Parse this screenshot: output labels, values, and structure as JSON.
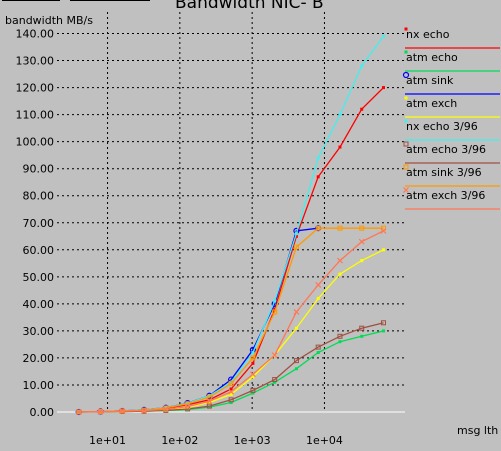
{
  "chart_data": {
    "type": "line",
    "title": "Bandwidth NIC- B",
    "ylabel": "bandwidth MB/s",
    "xlabel": "msg lth",
    "xscale": "log",
    "xlim": [
      2,
      130000
    ],
    "ylim": [
      0,
      145
    ],
    "grid": true,
    "legend_position": "right",
    "x_ticks": [
      10,
      100,
      1000,
      10000
    ],
    "x_tick_labels": [
      "1e+01",
      "1e+02",
      "1e+03",
      "1e+04"
    ],
    "y_ticks": [
      0,
      10,
      20,
      30,
      40,
      50,
      60,
      70,
      80,
      90,
      100,
      110,
      120,
      130,
      140
    ],
    "y_tick_labels": [
      "0.00",
      "10.00",
      "20.00",
      "30.00",
      "40.00",
      "50.00",
      "60.00",
      "70.00",
      "80.00",
      "90.00",
      "100.00",
      "110.00",
      "120.00",
      "130.00",
      "140.00"
    ],
    "series": [
      {
        "name": "nx echo",
        "color": "#ff0000",
        "marker": "dot",
        "x": [
          4,
          8,
          16,
          32,
          64,
          128,
          256,
          512,
          1024,
          2048,
          4096,
          8192,
          16384,
          32768,
          65536
        ],
        "y": [
          0,
          0.2,
          0.4,
          0.7,
          1.4,
          2.7,
          4.5,
          8.5,
          18,
          38,
          65,
          87,
          98,
          112,
          120
        ]
      },
      {
        "name": "atm echo",
        "color": "#00dd55",
        "marker": "dot",
        "x": [
          4,
          8,
          16,
          32,
          64,
          128,
          256,
          512,
          1024,
          2048,
          4096,
          8192,
          16384,
          32768,
          65536
        ],
        "y": [
          0,
          0.1,
          0.2,
          0.3,
          0.5,
          0.9,
          1.8,
          3.5,
          7,
          11,
          16,
          22,
          26,
          28,
          30
        ]
      },
      {
        "name": "atm sink",
        "color": "#0000ff",
        "marker": "circle",
        "x": [
          4,
          8,
          16,
          32,
          64,
          128,
          256,
          512,
          1024,
          2048,
          4096,
          8192
        ],
        "y": [
          0,
          0.2,
          0.4,
          0.8,
          1.6,
          3.3,
          6,
          12,
          23,
          40,
          67,
          68
        ]
      },
      {
        "name": "atm exch",
        "color": "#ffff00",
        "marker": "dot",
        "x": [
          4,
          8,
          16,
          32,
          64,
          128,
          256,
          512,
          1024,
          2048,
          4096,
          8192,
          16384,
          32768,
          65536
        ],
        "y": [
          0,
          0.1,
          0.2,
          0.4,
          0.8,
          1.7,
          3.5,
          6.5,
          13,
          21,
          31,
          42,
          51,
          56,
          60
        ]
      },
      {
        "name": "nx echo 3/96",
        "color": "#44eeee",
        "marker": "dot",
        "x": [
          4,
          8,
          16,
          32,
          64,
          128,
          256,
          512,
          1024,
          2048,
          4096,
          8192,
          16384,
          32768,
          65536
        ],
        "y": [
          0,
          0.2,
          0.4,
          0.8,
          1.6,
          3.2,
          6,
          11,
          22,
          41,
          66,
          94,
          110,
          128,
          139
        ]
      },
      {
        "name": "atm echo 3/96",
        "color": "#a05040",
        "marker": "square",
        "x": [
          4,
          8,
          16,
          32,
          64,
          128,
          256,
          512,
          1024,
          2048,
          4096,
          8192,
          16384,
          32768,
          65536
        ],
        "y": [
          0,
          0.1,
          0.2,
          0.3,
          0.6,
          1.1,
          2.2,
          4.5,
          8,
          12,
          19,
          24,
          28,
          31,
          33
        ]
      },
      {
        "name": "atm sink 3/96",
        "color": "#ff9900",
        "marker": "square",
        "x": [
          4,
          8,
          16,
          32,
          64,
          128,
          256,
          512,
          1024,
          2048,
          4096,
          8192,
          16384,
          32768,
          65536
        ],
        "y": [
          0,
          0.2,
          0.4,
          0.7,
          1.5,
          3,
          5.5,
          10.5,
          20,
          37,
          61,
          68,
          68,
          68,
          68
        ]
      },
      {
        "name": "atm exch 3/96",
        "color": "#ff7755",
        "marker": "cross",
        "x": [
          4,
          8,
          16,
          32,
          64,
          128,
          256,
          512,
          1024,
          2048,
          4096,
          8192,
          16384,
          32768,
          65536
        ],
        "y": [
          0,
          0.1,
          0.3,
          0.5,
          1,
          2,
          4,
          7.5,
          14,
          21,
          37,
          47,
          56,
          63,
          67
        ]
      }
    ]
  }
}
